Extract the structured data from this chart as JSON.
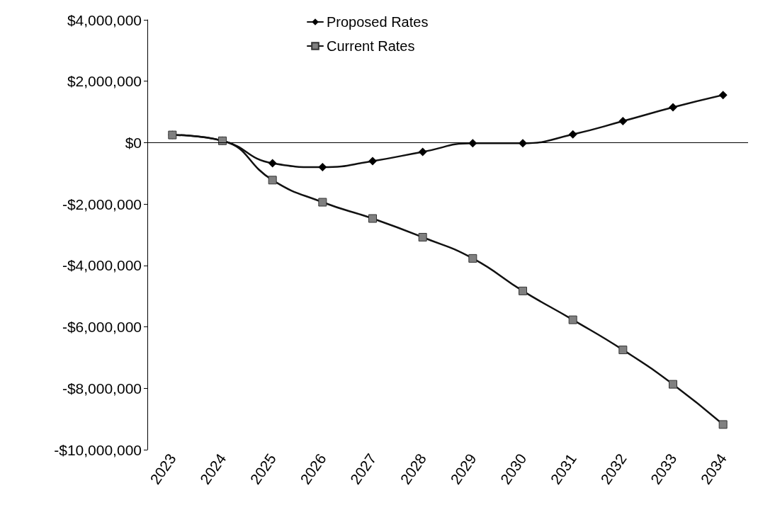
{
  "chart_data": {
    "type": "line",
    "categories": [
      "2023",
      "2024",
      "2025",
      "2026",
      "2027",
      "2028",
      "2029",
      "2030",
      "2031",
      "2032",
      "2033",
      "2034"
    ],
    "series": [
      {
        "name": "Proposed Rates",
        "color": "#000000",
        "marker": "diamond",
        "values": [
          250000,
          60000,
          -670000,
          -800000,
          -600000,
          -300000,
          -20000,
          -20000,
          270000,
          700000,
          1150000,
          1550000
        ]
      },
      {
        "name": "Current Rates",
        "color": "#808080",
        "marker": "square",
        "values": [
          250000,
          60000,
          -1220000,
          -1940000,
          -2470000,
          -3080000,
          -3770000,
          -4830000,
          -5770000,
          -6750000,
          -7870000,
          -9180000
        ]
      }
    ],
    "ylim": [
      -10000000,
      4000000
    ],
    "yticks": [
      {
        "value": -10000000,
        "label": "-$10,000,000"
      },
      {
        "value": -8000000,
        "label": "-$8,000,000"
      },
      {
        "value": -6000000,
        "label": "-$6,000,000"
      },
      {
        "value": -4000000,
        "label": "-$4,000,000"
      },
      {
        "value": -2000000,
        "label": "-$2,000,000"
      },
      {
        "value": 0,
        "label": "$0"
      },
      {
        "value": 2000000,
        "label": "$2,000,000"
      },
      {
        "value": 4000000,
        "label": "$4,000,000"
      }
    ],
    "ref_lines": [
      {
        "axis": "y",
        "value": 0,
        "color": "#000000"
      }
    ],
    "legend": "top",
    "grid": false
  }
}
